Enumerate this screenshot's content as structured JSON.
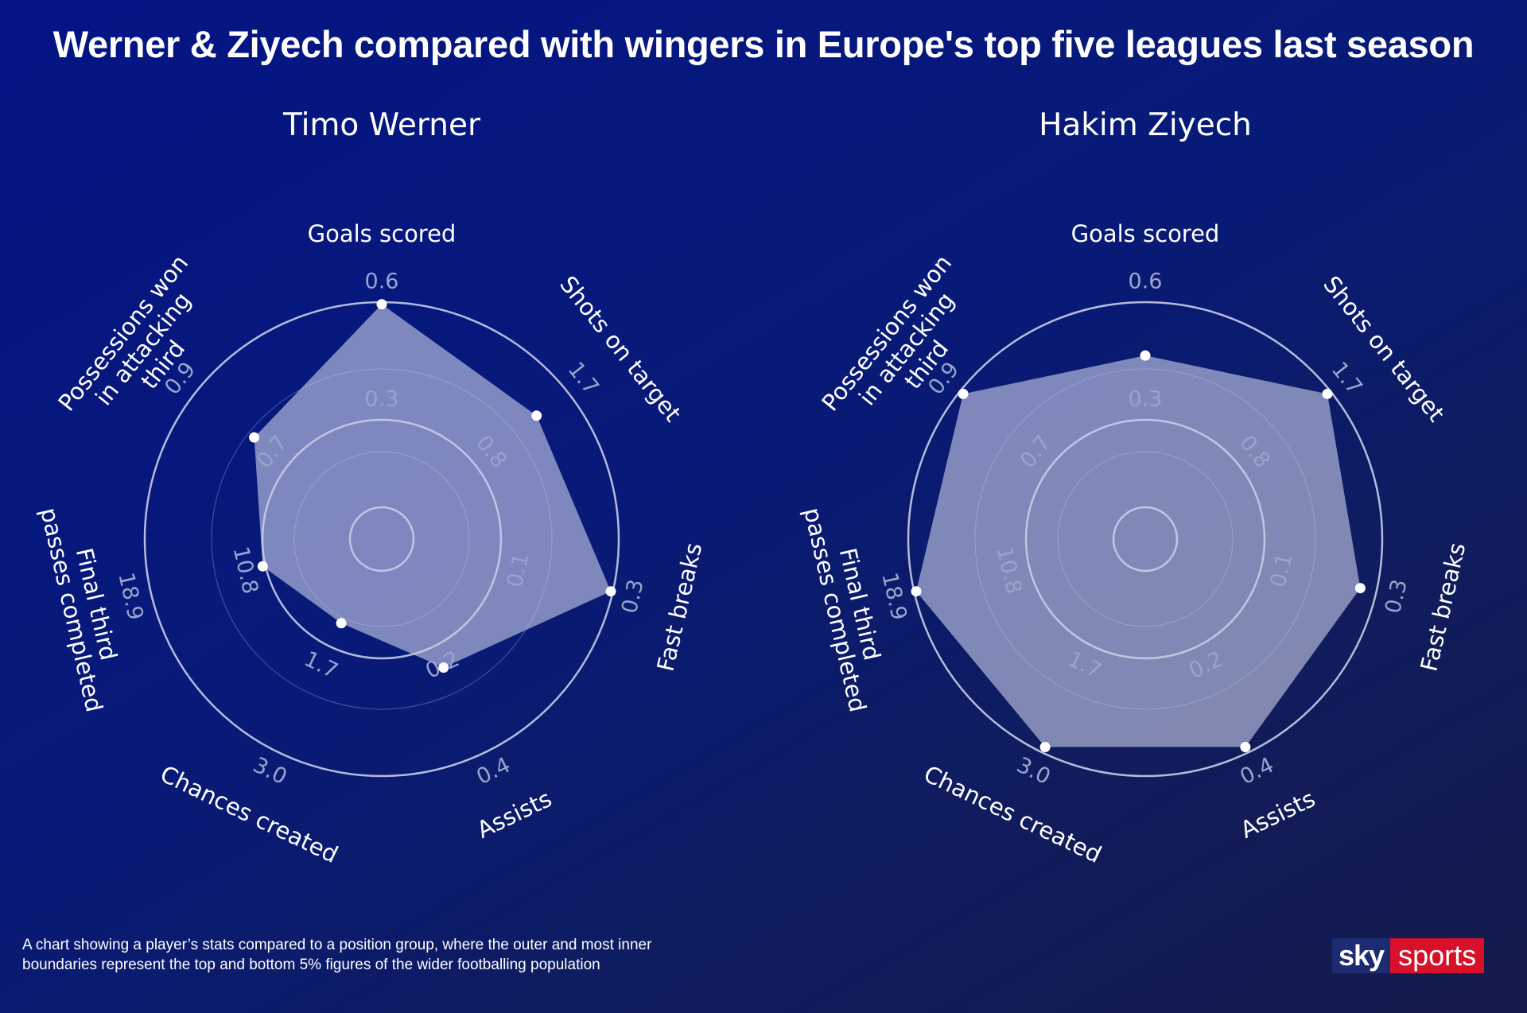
{
  "title": "Werner & Ziyech compared with wingers in Europe's top five leagues last season",
  "footnote": {
    "line1": "A chart showing a player’s stats compared to a position group, where the outer and most inner",
    "line2": "boundaries represent the top and bottom 5% figures of the wider footballing population"
  },
  "brand": {
    "sky": "sky",
    "sports": "sports",
    "sky_color": "#1c2b72",
    "sports_color": "#d8102a"
  },
  "colors": {
    "fill": "#c7cde8",
    "point": "#ffffff",
    "ring": "#c8cde8",
    "tick_label": "#9aa3cc"
  },
  "chart_data": [
    {
      "type": "radar",
      "title": "Timo Werner",
      "axes": [
        "Goals scored",
        "Shots on target",
        "Fast breaks",
        "Assists",
        "Chances created",
        "Final third passes completed",
        "Possessions won in attacking third"
      ],
      "axis_label_lines": [
        [
          "Goals scored"
        ],
        [
          "Shots on target"
        ],
        [
          "Fast breaks"
        ],
        [
          "Assists"
        ],
        [
          "Chances created"
        ],
        [
          "Final third",
          "passes completed"
        ],
        [
          "Possessions won",
          "in attacking",
          "third"
        ]
      ],
      "mid_ticks": [
        "0.3",
        "0.8",
        "0.1",
        "0.2",
        "1.7",
        "10.8",
        "0.7"
      ],
      "top_ticks": [
        "0.6",
        "1.7",
        "0.3",
        "0.4",
        "3.0",
        "18.9",
        "0.9"
      ],
      "values": [
        0.99,
        0.81,
        0.99,
        0.54,
        0.3,
        0.44,
        0.64
      ]
    },
    {
      "type": "radar",
      "title": "Hakim Ziyech",
      "axes": [
        "Goals scored",
        "Shots on target",
        "Fast breaks",
        "Assists",
        "Chances created",
        "Final third passes completed",
        "Possessions won in attacking third"
      ],
      "axis_label_lines": [
        [
          "Goals scored"
        ],
        [
          "Shots on target"
        ],
        [
          "Fast breaks"
        ],
        [
          "Assists"
        ],
        [
          "Chances created"
        ],
        [
          "Final third",
          "passes completed"
        ],
        [
          "Possessions won",
          "in attacking",
          "third"
        ]
      ],
      "mid_ticks": [
        "0.3",
        "0.8",
        "0.1",
        "0.2",
        "1.7",
        "10.8",
        "0.7"
      ],
      "top_ticks": [
        "0.6",
        "1.7",
        "0.3",
        "0.4",
        "3.0",
        "18.9",
        "0.9"
      ],
      "values": [
        0.74,
        0.98,
        0.92,
        0.97,
        0.97,
        0.99,
        0.98
      ]
    }
  ]
}
